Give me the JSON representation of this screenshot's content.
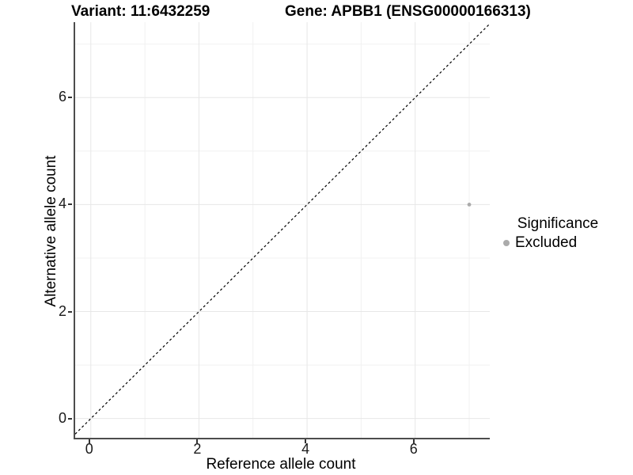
{
  "titles": {
    "variant": "Variant: 11:6432259",
    "gene": "Gene: APBB1 (ENSG00000166313)"
  },
  "chart_data": {
    "type": "scatter",
    "title_left": "Variant: 11:6432259",
    "title_right": "Gene: APBB1 (ENSG00000166313)",
    "xlabel": "Reference allele count",
    "ylabel": "Alternative allele count",
    "xlim": [
      -0.29,
      7.38
    ],
    "ylim": [
      -0.36,
      7.41
    ],
    "x_major_ticks": [
      0,
      2,
      4,
      6
    ],
    "y_major_ticks": [
      0,
      2,
      4,
      6
    ],
    "x_minor_gridlines": [
      1,
      3,
      5,
      7
    ],
    "y_minor_gridlines": [
      1,
      3,
      5,
      7
    ],
    "grid": true,
    "legend_position": "right",
    "series": [
      {
        "name": "Excluded",
        "color": "#ababab",
        "points": [
          {
            "x": 7,
            "y": 4
          }
        ]
      }
    ],
    "reference_line": {
      "type": "identity y=x",
      "style": "dashed",
      "color": "#000000"
    }
  },
  "legend": {
    "title": "Significance",
    "items": [
      {
        "label": "Excluded",
        "color": "#ababab"
      }
    ]
  },
  "colors": {
    "background": "#ffffff",
    "grid_major": "#e7e7e7",
    "grid_minor": "#f1f1f1",
    "axis_line": "#4d4d4d",
    "tick": "#333333",
    "point": "#ababab",
    "diagonal": "#000000"
  }
}
